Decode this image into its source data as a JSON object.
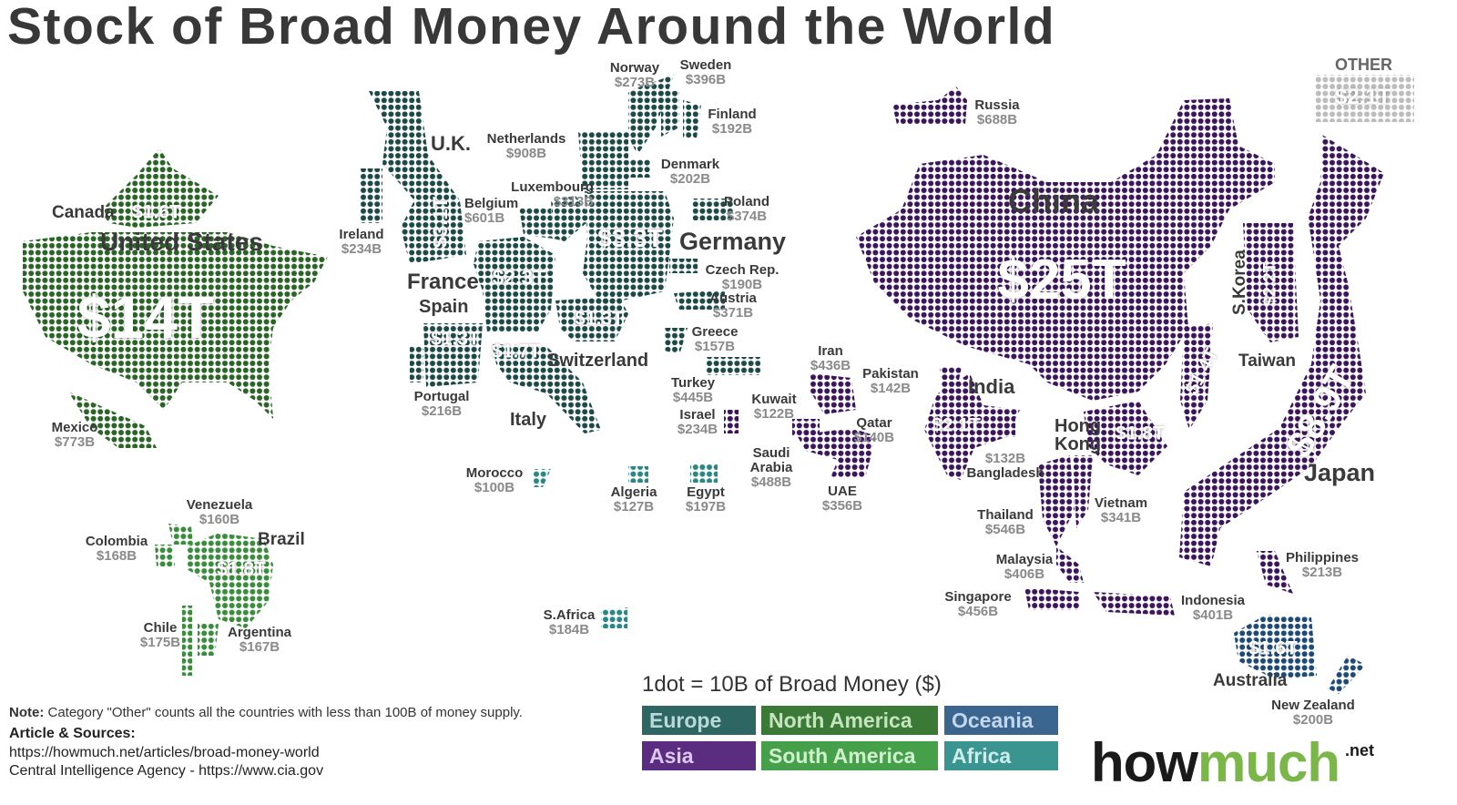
{
  "title": "Stock of Broad Money Around the World",
  "legend": {
    "title": "1dot = 10B of Broad Money ($)",
    "regions": [
      {
        "key": "europe",
        "label": "Europe",
        "color": "#2e6663",
        "text": "#b9d9d6",
        "dot": "#1d4a48"
      },
      {
        "key": "na",
        "label": "North America",
        "color": "#3b7a36",
        "text": "#c6e3c0",
        "dot": "#2a6426"
      },
      {
        "key": "oceania",
        "label": "Oceania",
        "color": "#3a6690",
        "text": "#c4d6ea",
        "dot": "#1e4a78"
      },
      {
        "key": "asia",
        "label": "Asia",
        "color": "#5a2d80",
        "text": "#dcc8ee",
        "dot": "#3c165c"
      },
      {
        "key": "sa",
        "label": "South America",
        "color": "#46a04a",
        "text": "#d2efcf",
        "dot": "#3a8d3c"
      },
      {
        "key": "africa",
        "label": "Africa",
        "color": "#3a9490",
        "text": "#cdeceb",
        "dot": "#2a8783"
      }
    ]
  },
  "other": {
    "label": "OTHER",
    "value": "$2.1T",
    "color": "#bdbdbd"
  },
  "countries": [
    {
      "key": "us",
      "name": "United States",
      "value": "$14T",
      "region": "na"
    },
    {
      "key": "canada",
      "name": "Canada",
      "value": "$1.6T",
      "region": "na"
    },
    {
      "key": "mexico",
      "name": "Mexico",
      "value": "$773B",
      "region": "na"
    },
    {
      "key": "venezuela",
      "name": "Venezuela",
      "value": "$160B",
      "region": "sa"
    },
    {
      "key": "colombia",
      "name": "Colombia",
      "value": "$168B",
      "region": "sa"
    },
    {
      "key": "brazil",
      "name": "Brazil",
      "value": "$1.8T",
      "region": "sa"
    },
    {
      "key": "chile",
      "name": "Chile",
      "value": "$175B",
      "region": "sa"
    },
    {
      "key": "argentina",
      "name": "Argentina",
      "value": "$167B",
      "region": "sa"
    },
    {
      "key": "uk",
      "name": "U.K.",
      "value": "$3.1T",
      "region": "europe"
    },
    {
      "key": "ireland",
      "name": "Ireland",
      "value": "$234B",
      "region": "europe"
    },
    {
      "key": "france",
      "name": "France",
      "value": "$2.3T",
      "region": "europe"
    },
    {
      "key": "spain",
      "name": "Spain",
      "value": "$1.3T",
      "region": "europe"
    },
    {
      "key": "portugal",
      "name": "Portugal",
      "value": "$216B",
      "region": "europe"
    },
    {
      "key": "italy",
      "name": "Italy",
      "value": "$1.7T",
      "region": "europe"
    },
    {
      "key": "switzerland",
      "name": "Switzerland",
      "value": "$1.3T",
      "region": "europe"
    },
    {
      "key": "netherlands",
      "name": "Netherlands",
      "value": "$908B",
      "region": "europe"
    },
    {
      "key": "belgium",
      "name": "Belgium",
      "value": "$601B",
      "region": "europe"
    },
    {
      "key": "luxembourg",
      "name": "Luxembourg",
      "value": "$313B",
      "region": "europe"
    },
    {
      "key": "germany",
      "name": "Germany",
      "value": "$3.3T",
      "region": "europe"
    },
    {
      "key": "norway",
      "name": "Norway",
      "value": "$273B",
      "region": "europe"
    },
    {
      "key": "sweden",
      "name": "Sweden",
      "value": "$396B",
      "region": "europe"
    },
    {
      "key": "finland",
      "name": "Finland",
      "value": "$192B",
      "region": "europe"
    },
    {
      "key": "denmark",
      "name": "Denmark",
      "value": "$202B",
      "region": "europe"
    },
    {
      "key": "poland",
      "name": "Poland",
      "value": "$374B",
      "region": "europe"
    },
    {
      "key": "czech",
      "name": "Czech Rep.",
      "value": "$190B",
      "region": "europe"
    },
    {
      "key": "austria",
      "name": "Austria",
      "value": "$371B",
      "region": "europe"
    },
    {
      "key": "greece",
      "name": "Greece",
      "value": "$157B",
      "region": "europe"
    },
    {
      "key": "turkey",
      "name": "Turkey",
      "value": "$445B",
      "region": "europe"
    },
    {
      "key": "israel",
      "name": "Israel",
      "value": "$234B",
      "region": "asia"
    },
    {
      "key": "morocco",
      "name": "Morocco",
      "value": "$100B",
      "region": "africa"
    },
    {
      "key": "algeria",
      "name": "Algeria",
      "value": "$127B",
      "region": "africa"
    },
    {
      "key": "egypt",
      "name": "Egypt",
      "value": "$197B",
      "region": "africa"
    },
    {
      "key": "safrica",
      "name": "S.Africa",
      "value": "$184B",
      "region": "africa"
    },
    {
      "key": "russia",
      "name": "Russia",
      "value": "$688B",
      "region": "asia"
    },
    {
      "key": "iran",
      "name": "Iran",
      "value": "$436B",
      "region": "asia"
    },
    {
      "key": "kuwait",
      "name": "Kuwait",
      "value": "$122B",
      "region": "asia"
    },
    {
      "key": "saudi",
      "name": "Saudi Arabia",
      "value": "$488B",
      "region": "asia"
    },
    {
      "key": "qatar",
      "name": "Qatar",
      "value": "$140B",
      "region": "asia"
    },
    {
      "key": "uae",
      "name": "UAE",
      "value": "$356B",
      "region": "asia"
    },
    {
      "key": "pakistan",
      "name": "Pakistan",
      "value": "$142B",
      "region": "asia"
    },
    {
      "key": "india",
      "name": "India",
      "value": "$2.1T",
      "region": "asia"
    },
    {
      "key": "bangladesh",
      "name": "Bangladesh",
      "value": "$132B",
      "region": "asia"
    },
    {
      "key": "china",
      "name": "China",
      "value": "$25T",
      "region": "asia"
    },
    {
      "key": "hongkong",
      "name": "Hong Kong",
      "value": "$1.8T",
      "region": "asia"
    },
    {
      "key": "taiwan",
      "name": "Taiwan",
      "value": "$1.4T",
      "region": "asia"
    },
    {
      "key": "skorea",
      "name": "S.Korea",
      "value": "$2.2T",
      "region": "asia"
    },
    {
      "key": "japan",
      "name": "Japan",
      "value": "$8.9T",
      "region": "asia"
    },
    {
      "key": "thailand",
      "name": "Thailand",
      "value": "$546B",
      "region": "asia"
    },
    {
      "key": "vietnam",
      "name": "Vietnam",
      "value": "$341B",
      "region": "asia"
    },
    {
      "key": "malaysia",
      "name": "Malaysia",
      "value": "$406B",
      "region": "asia"
    },
    {
      "key": "singapore",
      "name": "Singapore",
      "value": "$456B",
      "region": "asia"
    },
    {
      "key": "indonesia",
      "name": "Indonesia",
      "value": "$401B",
      "region": "asia"
    },
    {
      "key": "philippines",
      "name": "Philippines",
      "value": "$213B",
      "region": "asia"
    },
    {
      "key": "australia",
      "name": "Australia",
      "value": "$1.6T",
      "region": "oceania"
    },
    {
      "key": "nz",
      "name": "New Zealand",
      "value": "$200B",
      "region": "oceania"
    }
  ],
  "note": {
    "label": "Note:",
    "text": " Category \"Other\" counts all the countries with less than 100B of money supply."
  },
  "sources": {
    "heading": "Article & Sources:",
    "lines": [
      "https://howmuch.net/articles/broad-money-world",
      "Central Intelligence Agency - https://www.cia.gov"
    ]
  },
  "logo": {
    "part1": "how",
    "part2": "much",
    "part3": ".net"
  }
}
